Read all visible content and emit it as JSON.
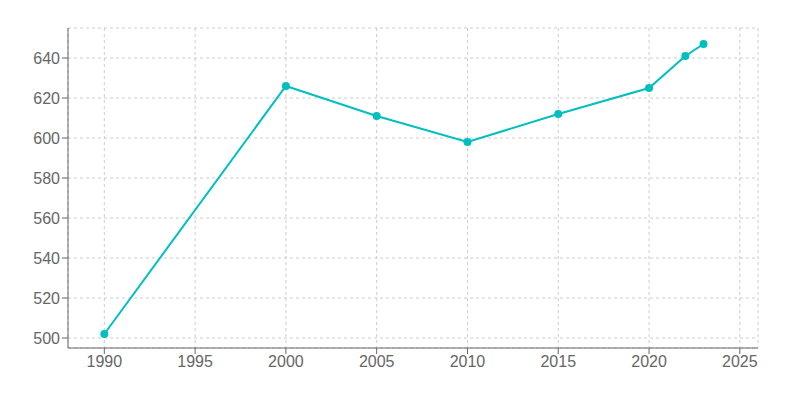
{
  "chart_data": {
    "type": "line",
    "x": [
      1990,
      2000,
      2005,
      2010,
      2015,
      2020,
      2022,
      2023
    ],
    "values": [
      502,
      626,
      611,
      598,
      612,
      625,
      641,
      647
    ],
    "color": "#00BFBF",
    "marker": "circle",
    "xlim": [
      1988,
      2026
    ],
    "ylim": [
      495,
      655
    ],
    "xticks": [
      1990,
      1995,
      2000,
      2005,
      2010,
      2015,
      2020,
      2025
    ],
    "yticks": [
      500,
      520,
      540,
      560,
      580,
      600,
      620,
      640
    ],
    "grid": true
  }
}
